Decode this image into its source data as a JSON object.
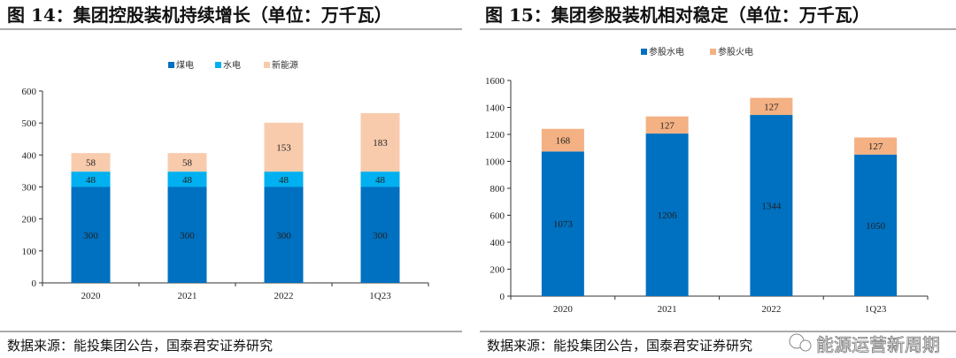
{
  "chart_data": [
    {
      "type": "bar",
      "stacked": true,
      "title": "图 14：集团控股装机持续增长（单位：万千瓦）",
      "categories": [
        "2020",
        "2021",
        "2022",
        "1Q23"
      ],
      "series": [
        {
          "name": "煤电",
          "values": [
            300,
            300,
            300,
            300
          ],
          "color": "#0070C0"
        },
        {
          "name": "水电",
          "values": [
            48,
            48,
            48,
            48
          ],
          "color": "#00B0F0"
        },
        {
          "name": "新能源",
          "values": [
            58,
            58,
            153,
            183
          ],
          "color": "#F8CBAD"
        }
      ],
      "ylim": [
        0,
        600
      ],
      "yticks": [
        0,
        100,
        200,
        300,
        400,
        500,
        600
      ],
      "legend": "top",
      "grid": false,
      "source": "数据来源：能投集团公告，国泰君安证券研究"
    },
    {
      "type": "bar",
      "stacked": true,
      "title": "图 15：集团参股装机相对稳定（单位：万千瓦）",
      "categories": [
        "2020",
        "2021",
        "2022",
        "1Q23"
      ],
      "series": [
        {
          "name": "参股水电",
          "values": [
            1073,
            1206,
            1344,
            1050
          ],
          "color": "#0070C0"
        },
        {
          "name": "参股火电",
          "values": [
            168,
            127,
            127,
            127
          ],
          "color": "#F4B183"
        }
      ],
      "ylim": [
        0,
        1600
      ],
      "yticks": [
        0,
        200,
        400,
        600,
        800,
        1000,
        1200,
        1400,
        1600
      ],
      "legend": "top",
      "grid": false,
      "source": "数据来源：能投集团公告，国泰君安证券研究"
    }
  ],
  "watermark": "能源运营新周期"
}
